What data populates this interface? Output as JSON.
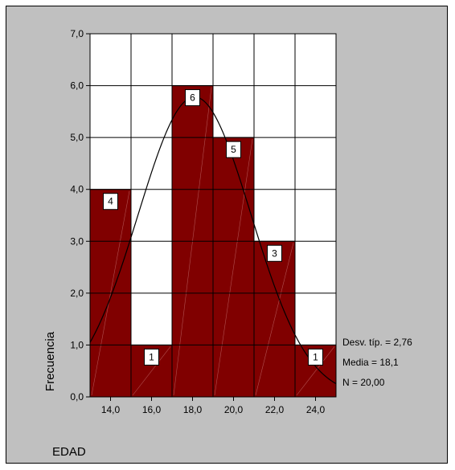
{
  "chart_data": {
    "type": "bar",
    "title": "",
    "xlabel": "EDAD",
    "ylabel": "Frecuencia",
    "ylim": [
      0,
      7
    ],
    "xlim": [
      13,
      25
    ],
    "bin_width": 2,
    "y_ticks": [
      "0,0",
      "1,0",
      "2,0",
      "3,0",
      "4,0",
      "5,0",
      "6,0",
      "7,0"
    ],
    "x_ticks": [
      {
        "value": 14,
        "label": "14,0"
      },
      {
        "value": 16,
        "label": "16,0"
      },
      {
        "value": 18,
        "label": "18,0"
      },
      {
        "value": 20,
        "label": "20,0"
      },
      {
        "value": 22,
        "label": "22,0"
      },
      {
        "value": 24,
        "label": "24,0"
      }
    ],
    "bins": [
      {
        "center": 14,
        "value": 4,
        "label": "4"
      },
      {
        "center": 16,
        "value": 1,
        "label": "1"
      },
      {
        "center": 18,
        "value": 6,
        "label": "6"
      },
      {
        "center": 20,
        "value": 5,
        "label": "5"
      },
      {
        "center": 22,
        "value": 3,
        "label": "3"
      },
      {
        "center": 24,
        "value": 1,
        "label": "1"
      }
    ],
    "normal_curve": {
      "mean": 18.1,
      "sd": 2.76,
      "n": 20
    },
    "stats_text": [
      "Desv. típ. = 2,76",
      "Media = 18,1",
      "N = 20,00"
    ],
    "grid": true,
    "colors": {
      "bar": "#800000",
      "background": "#c0c0c0",
      "plot_area": "#ffffff",
      "grid": "#000000"
    }
  }
}
